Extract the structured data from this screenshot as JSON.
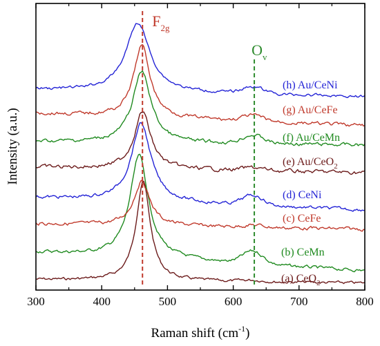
{
  "chart_data": {
    "type": "line",
    "xlabel_main": "Raman shift (cm",
    "xlabel_sup": "-1",
    "xlabel_end": ")",
    "ylabel": "Intensity (a.u.)",
    "xlim": [
      300,
      800
    ],
    "xticks": [
      300,
      400,
      500,
      600,
      700,
      800
    ],
    "y_ticks": "none",
    "grid": false,
    "annotations": [
      {
        "text": "F",
        "sub": "2g",
        "x": 462,
        "color": "#c0392b",
        "style": "dashed"
      },
      {
        "text": "O",
        "sub": "v",
        "x": 632,
        "color": "#2e8b2e",
        "style": "dashed"
      }
    ],
    "series": [
      {
        "label_prefix": "(a) CeO",
        "label_sub": "2",
        "color": "#6b1a1a",
        "baseline": 405,
        "end": 410,
        "peak_x": 463,
        "peak_height": 144,
        "width": 13,
        "noise": 1.6,
        "ov_height": 2
      },
      {
        "label_prefix": "(b) CeMn",
        "label_sub": "",
        "color": "#1f8a1f",
        "baseline": 365,
        "end": 392,
        "peak_x": 457,
        "peak_height": 148,
        "width": 17,
        "noise": 1.8,
        "ov_height": 18
      },
      {
        "label_prefix": "(c) CeFe",
        "label_sub": "",
        "color": "#c0392b",
        "baseline": 324,
        "end": 332,
        "peak_x": 461,
        "peak_height": 64,
        "width": 15,
        "noise": 2.0,
        "ov_height": 3
      },
      {
        "label_prefix": "(d) CeNi",
        "label_sub": "",
        "color": "#2323d6",
        "baseline": 286,
        "end": 304,
        "peak_x": 460,
        "peak_height": 113,
        "width": 18,
        "noise": 1.8,
        "ov_height": 14
      },
      {
        "label_prefix": "(e) Au/CeO",
        "label_sub": "2",
        "color": "#6b1a1a",
        "baseline": 242,
        "end": 250,
        "peak_x": 462,
        "peak_height": 83,
        "width": 15,
        "noise": 2.2,
        "ov_height": 4
      },
      {
        "label_prefix": "(f) Au/CeMn",
        "label_sub": "",
        "color": "#1f8a1f",
        "baseline": 205,
        "end": 210,
        "peak_x": 461,
        "peak_height": 103,
        "width": 17,
        "noise": 2.0,
        "ov_height": 12
      },
      {
        "label_prefix": "(g) Au/CeFe",
        "label_sub": "",
        "color": "#c0392b",
        "baseline": 164,
        "end": 182,
        "peak_x": 461,
        "peak_height": 104,
        "width": 15,
        "noise": 2.0,
        "ov_height": 8
      },
      {
        "label_prefix": "(h) Au/CeNi",
        "label_sub": "",
        "color": "#2323d6",
        "baseline": 130,
        "end": 140,
        "peak_x": 455,
        "peak_height": 100,
        "width": 22,
        "noise": 1.6,
        "ov_height": 10
      }
    ]
  }
}
